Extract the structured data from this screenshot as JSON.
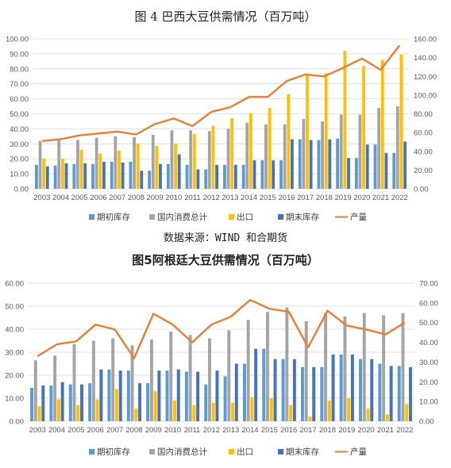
{
  "chart_data": [
    {
      "type": "bar",
      "title": "图 4  巴西大豆供需情况（百万吨）",
      "categories": [
        "2003",
        "2004",
        "2005",
        "2006",
        "2007",
        "2008",
        "2009",
        "2010",
        "2011",
        "2012",
        "2013",
        "2014",
        "2015",
        "2016",
        "2017",
        "2018",
        "2019",
        "2020",
        "2021",
        "2022"
      ],
      "y_left_ticks": [
        "0.00",
        "10.00",
        "20.00",
        "30.00",
        "40.00",
        "50.00",
        "60.00",
        "70.00",
        "80.00",
        "90.00",
        "100.00"
      ],
      "y_right_ticks": [
        "0.00",
        "20.00",
        "40.00",
        "60.00",
        "80.00",
        "100.00",
        "120.00",
        "140.00",
        "160.00"
      ],
      "ylim_left": [
        0,
        100
      ],
      "ylim_right": [
        0,
        160
      ],
      "series": [
        {
          "name": "期初库存",
          "type": "bar",
          "axis": "left",
          "color": "#5B9BD5",
          "values": [
            16,
            15.5,
            16.5,
            16.5,
            18,
            18,
            12,
            16.5,
            16,
            13,
            16,
            16,
            19,
            19,
            33,
            32.5,
            33.5,
            20.5,
            29.5,
            24
          ]
        },
        {
          "name": "国内消费总计",
          "type": "bar",
          "axis": "left",
          "color": "#A5A5A5",
          "values": [
            32,
            32.5,
            32.5,
            34,
            35,
            34.5,
            36,
            39,
            39,
            38.5,
            40,
            44,
            43,
            43,
            46.5,
            45,
            49.5,
            49.5,
            54,
            55
          ]
        },
        {
          "name": "出口",
          "type": "bar",
          "axis": "left",
          "color": "#FFC000",
          "values": [
            20,
            20,
            26,
            23.5,
            25.5,
            30,
            28.5,
            30,
            36.5,
            42,
            47,
            50.5,
            54,
            63,
            76,
            77,
            92,
            82,
            86,
            89.5
          ]
        },
        {
          "name": "期末库存",
          "type": "bar",
          "axis": "left",
          "color": "#4472C4",
          "values": [
            15,
            17,
            17,
            18,
            17.5,
            12,
            16.5,
            23,
            13,
            16,
            16,
            19,
            19,
            33,
            32.5,
            33,
            20.5,
            29.5,
            24,
            31.5
          ]
        },
        {
          "name": "产量",
          "type": "line",
          "axis": "right",
          "color": "#ED7D31",
          "values": [
            51,
            53,
            57,
            59,
            61,
            58,
            69,
            75,
            67,
            82,
            87,
            98,
            98,
            115,
            122,
            120,
            129,
            139,
            127,
            153
          ]
        }
      ],
      "legend": "bottom"
    },
    {
      "type": "bar",
      "title": "图5阿根廷大豆供需情况（百万吨）",
      "categories": [
        "2003",
        "2004",
        "2005",
        "2006",
        "2007",
        "2008",
        "2009",
        "2010",
        "2011",
        "2012",
        "2013",
        "2014",
        "2015",
        "2016",
        "2017",
        "2018",
        "2019",
        "2020",
        "2021",
        "2022"
      ],
      "y_left_ticks": [
        "0.00",
        "10.00",
        "20.00",
        "30.00",
        "40.00",
        "50.00",
        "60.00"
      ],
      "y_right_ticks": [
        "0.00",
        "10.00",
        "20.00",
        "30.00",
        "40.00",
        "50.00",
        "60.00",
        "70.00"
      ],
      "ylim_left": [
        0,
        60
      ],
      "ylim_right": [
        0,
        70
      ],
      "series": [
        {
          "name": "期初库存",
          "type": "bar",
          "axis": "left",
          "color": "#5B9BD5",
          "values": [
            14.5,
            15.5,
            16,
            16.5,
            22.5,
            22,
            16.5,
            22,
            21.5,
            16,
            19.5,
            25,
            31.5,
            27,
            23.5,
            23.5,
            29,
            27,
            25,
            24
          ]
        },
        {
          "name": "国内消费总计",
          "type": "bar",
          "axis": "left",
          "color": "#A5A5A5",
          "values": [
            26.5,
            28.5,
            33.5,
            35,
            36,
            33,
            35.5,
            39,
            37.5,
            36,
            39.5,
            44,
            47.5,
            49.5,
            43.5,
            47,
            45.5,
            47,
            46,
            47
          ]
        },
        {
          "name": "出口",
          "type": "bar",
          "axis": "left",
          "color": "#FFC000",
          "values": [
            6.5,
            9.5,
            7,
            9.5,
            14,
            5.5,
            13,
            9,
            7,
            8,
            8,
            10.5,
            10,
            7,
            2,
            9,
            10,
            5.5,
            3,
            7.5
          ]
        },
        {
          "name": "期末库存",
          "type": "bar",
          "axis": "left",
          "color": "#4472C4",
          "values": [
            15.5,
            17,
            16,
            22.5,
            22,
            16.5,
            22,
            22.5,
            21.5,
            22,
            25,
            31.5,
            27,
            27,
            23.5,
            29,
            29,
            27,
            24,
            23.5
          ]
        },
        {
          "name": "产量",
          "type": "line",
          "axis": "right",
          "color": "#ED7D31",
          "values": [
            33,
            39,
            40.5,
            49,
            46.5,
            32,
            54.5,
            49,
            40,
            49,
            53,
            61.5,
            57,
            55.5,
            37.5,
            56,
            48.5,
            46.5,
            44,
            50
          ]
        }
      ],
      "legend": "bottom"
    }
  ],
  "source": "数据来源：WIND   和合期货"
}
